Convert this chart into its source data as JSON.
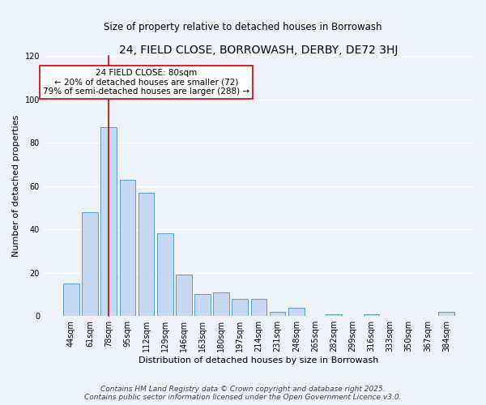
{
  "title": "24, FIELD CLOSE, BORROWASH, DERBY, DE72 3HJ",
  "subtitle": "Size of property relative to detached houses in Borrowash",
  "xlabel": "Distribution of detached houses by size in Borrowash",
  "ylabel": "Number of detached properties",
  "bar_labels": [
    "44sqm",
    "61sqm",
    "78sqm",
    "95sqm",
    "112sqm",
    "129sqm",
    "146sqm",
    "163sqm",
    "180sqm",
    "197sqm",
    "214sqm",
    "231sqm",
    "248sqm",
    "265sqm",
    "282sqm",
    "299sqm",
    "316sqm",
    "333sqm",
    "350sqm",
    "367sqm",
    "384sqm"
  ],
  "bar_values": [
    15,
    48,
    87,
    63,
    57,
    38,
    19,
    10,
    11,
    8,
    8,
    2,
    4,
    0,
    1,
    0,
    1,
    0,
    0,
    0,
    2
  ],
  "bar_color": "#c6d9f0",
  "bar_edge_color": "#5a9bd5",
  "ylim": [
    0,
    120
  ],
  "yticks": [
    0,
    20,
    40,
    60,
    80,
    100,
    120
  ],
  "vline_x_index": 2,
  "vline_color": "#cc0000",
  "annotation_title": "24 FIELD CLOSE: 80sqm",
  "annotation_line1": "← 20% of detached houses are smaller (72)",
  "annotation_line2": "79% of semi-detached houses are larger (288) →",
  "annotation_box_color": "#ffffff",
  "annotation_box_edge": "#cc0000",
  "footer1": "Contains HM Land Registry data © Crown copyright and database right 2025.",
  "footer2": "Contains public sector information licensed under the Open Government Licence v3.0.",
  "background_color": "#eef2f9",
  "grid_color": "#ffffff",
  "title_fontsize": 10,
  "subtitle_fontsize": 8.5,
  "axis_label_fontsize": 8,
  "tick_fontsize": 7,
  "annotation_fontsize": 7.5,
  "footer_fontsize": 6.5
}
